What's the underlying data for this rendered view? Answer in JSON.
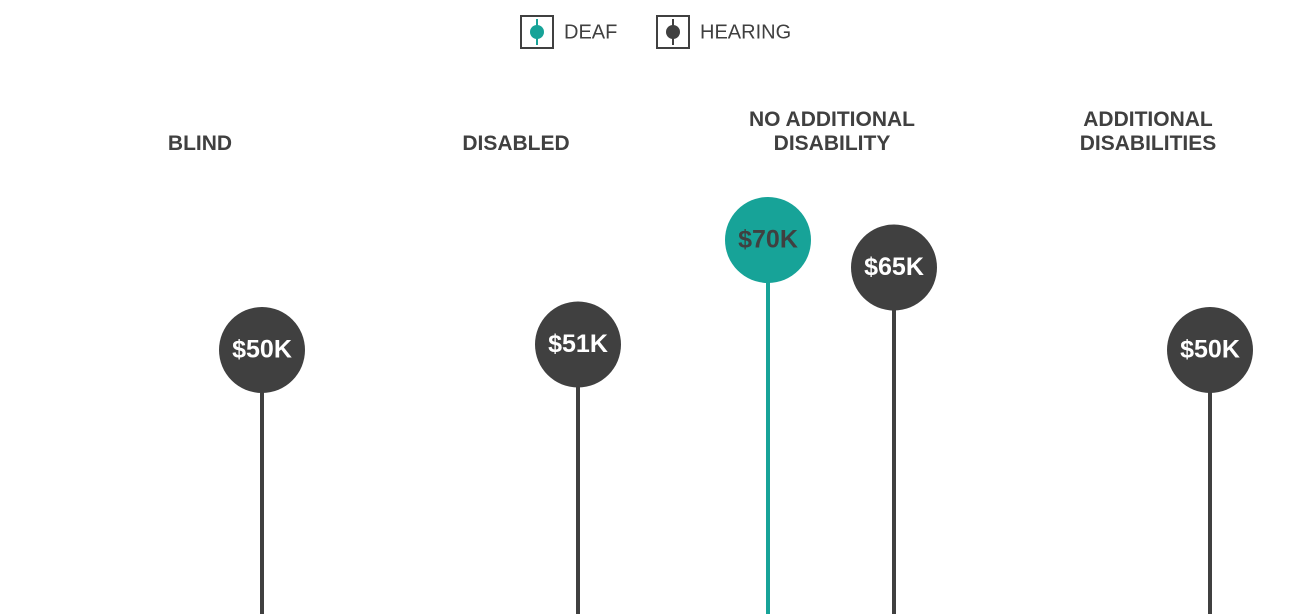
{
  "chart_data": {
    "type": "lollipop",
    "categories": [
      "BLIND",
      "DISABLED",
      "NO ADDITIONAL DISABILITY",
      "ADDITIONAL DISABILITIES"
    ],
    "series": [
      {
        "name": "DEAF",
        "color": "#17a398",
        "values": [
          null,
          null,
          70,
          null
        ],
        "value_labels": [
          null,
          null,
          "$70K",
          null
        ]
      },
      {
        "name": "HEARING",
        "color": "#404040",
        "values": [
          50,
          51,
          65,
          50
        ],
        "value_labels": [
          "$50K",
          "$51K",
          "$65K",
          "$50K"
        ]
      }
    ]
  }
}
